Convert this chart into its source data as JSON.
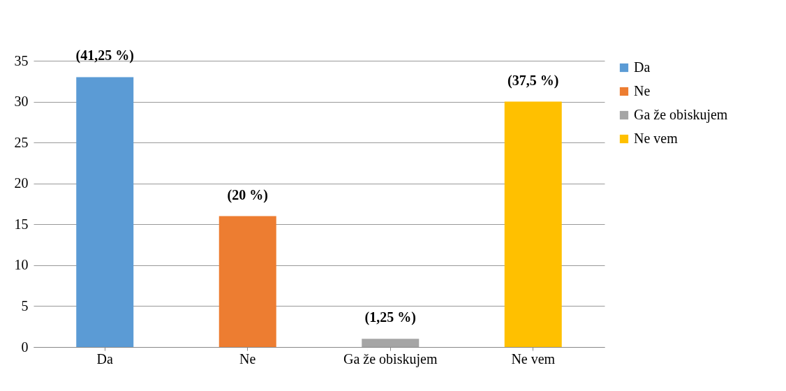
{
  "chart_data": {
    "type": "bar",
    "categories": [
      "Da",
      "Ne",
      "Ga že obiskujem",
      "Ne vem"
    ],
    "series": [
      {
        "name": "Da",
        "color": "#5b9bd5",
        "values": [
          33,
          null,
          null,
          null
        ]
      },
      {
        "name": "Ne",
        "color": "#ed7d31",
        "values": [
          null,
          16,
          null,
          null
        ]
      },
      {
        "name": "Ga že obiskujem",
        "color": "#a5a5a5",
        "values": [
          null,
          null,
          1,
          null
        ]
      },
      {
        "name": "Ne vem",
        "color": "#ffc000",
        "values": [
          null,
          null,
          null,
          30
        ]
      }
    ],
    "annotations": [
      {
        "text": "(41,25 %)",
        "x": "Da",
        "y": 33
      },
      {
        "text": "(20 %)",
        "x": "Ne",
        "y": 16
      },
      {
        "text": "(1,25 %)",
        "x": "Ga že obiskujem",
        "y": 1
      },
      {
        "text": "(37,5 %)",
        "x": "Ne vem",
        "y": 30
      }
    ],
    "ylim": [
      0,
      35
    ],
    "yticks": [
      0,
      5,
      10,
      15,
      20,
      25,
      30,
      35
    ],
    "grid": "y",
    "legend": "right"
  }
}
